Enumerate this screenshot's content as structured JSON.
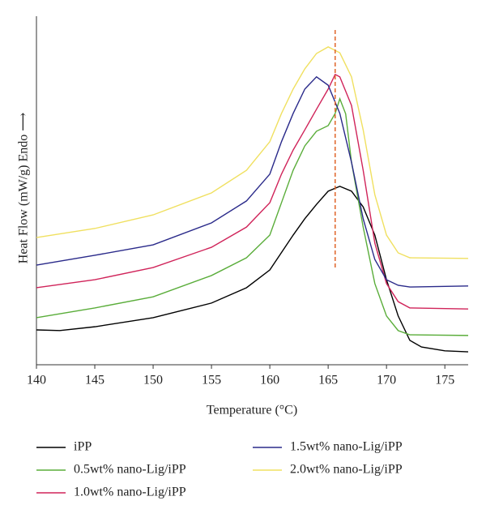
{
  "chart_data": {
    "type": "line",
    "xlabel": "Temperature (°C)",
    "ylabel": "Heat Flow (mW/g) Endo ⟶",
    "xlim": [
      140,
      177
    ],
    "xticks": [
      140,
      145,
      150,
      155,
      160,
      165,
      170,
      175
    ],
    "ylim": [
      0,
      100
    ],
    "reference_line": {
      "x": 165.6,
      "ymin": 27.9,
      "ymax": 96.3,
      "color": "#e0652a"
    },
    "series": [
      {
        "name": "iPP",
        "color": "#000000",
        "x": [
          140,
          142,
          145,
          150,
          155,
          158,
          160,
          162,
          163,
          164,
          165,
          166,
          167,
          168,
          169,
          170,
          171,
          172,
          173,
          175,
          177
        ],
        "values": [
          10,
          9.8,
          10.9,
          13.5,
          17.7,
          22.1,
          27.2,
          37.2,
          41.9,
          46.0,
          49.8,
          51.2,
          49.8,
          45.3,
          37.2,
          24.4,
          14.0,
          7.0,
          5.1,
          4.0,
          3.7
        ]
      },
      {
        "name": "0.5wt% nano-Lig/iPP",
        "color": "#5aad3a",
        "x": [
          140,
          145,
          150,
          155,
          158,
          160,
          161,
          162,
          163,
          164,
          165,
          165.6,
          166,
          166.5,
          167,
          168,
          169,
          170,
          171,
          172,
          177
        ],
        "values": [
          13.5,
          16.3,
          19.5,
          25.6,
          30.7,
          37.2,
          46.5,
          55.8,
          62.8,
          67.0,
          68.6,
          72.1,
          76.3,
          72.0,
          58.1,
          39.5,
          23.3,
          14.0,
          9.8,
          8.6,
          8.4
        ]
      },
      {
        "name": "1.0wt% nano-Lig/iPP",
        "color": "#d0245a",
        "x": [
          140,
          145,
          150,
          155,
          158,
          160,
          161,
          162,
          163,
          164,
          165,
          165.6,
          166,
          167,
          168,
          169,
          170,
          171,
          172,
          177
        ],
        "values": [
          22.1,
          24.4,
          27.9,
          33.7,
          39.5,
          46.5,
          54.7,
          61.6,
          67.4,
          73.3,
          79.1,
          83.3,
          82.6,
          74.4,
          55.8,
          34.9,
          23.3,
          18.1,
          16.3,
          16.0
        ]
      },
      {
        "name": "1.5wt% nano-Lig/iPP",
        "color": "#2a2a8a",
        "x": [
          140,
          145,
          150,
          155,
          158,
          160,
          161,
          162,
          163,
          164,
          165,
          166,
          167,
          168,
          169,
          170,
          171,
          172,
          177
        ],
        "values": [
          28.6,
          31.4,
          34.4,
          40.7,
          47.0,
          54.7,
          64.0,
          72.1,
          79.1,
          82.6,
          80.2,
          72.1,
          58.1,
          41.9,
          30.2,
          24.4,
          22.8,
          22.3,
          22.6
        ]
      },
      {
        "name": "2.0wt% nano-Lig/iPP",
        "color": "#f0e060",
        "x": [
          140,
          145,
          150,
          155,
          158,
          160,
          161,
          162,
          163,
          164,
          165,
          166,
          167,
          168,
          169,
          170,
          171,
          172,
          177
        ],
        "values": [
          36.5,
          39.1,
          43.0,
          49.3,
          55.8,
          64.0,
          72.1,
          79.1,
          84.9,
          89.3,
          91.2,
          89.5,
          82.6,
          67.4,
          48.8,
          37.2,
          32.1,
          30.7,
          30.5
        ]
      }
    ]
  }
}
